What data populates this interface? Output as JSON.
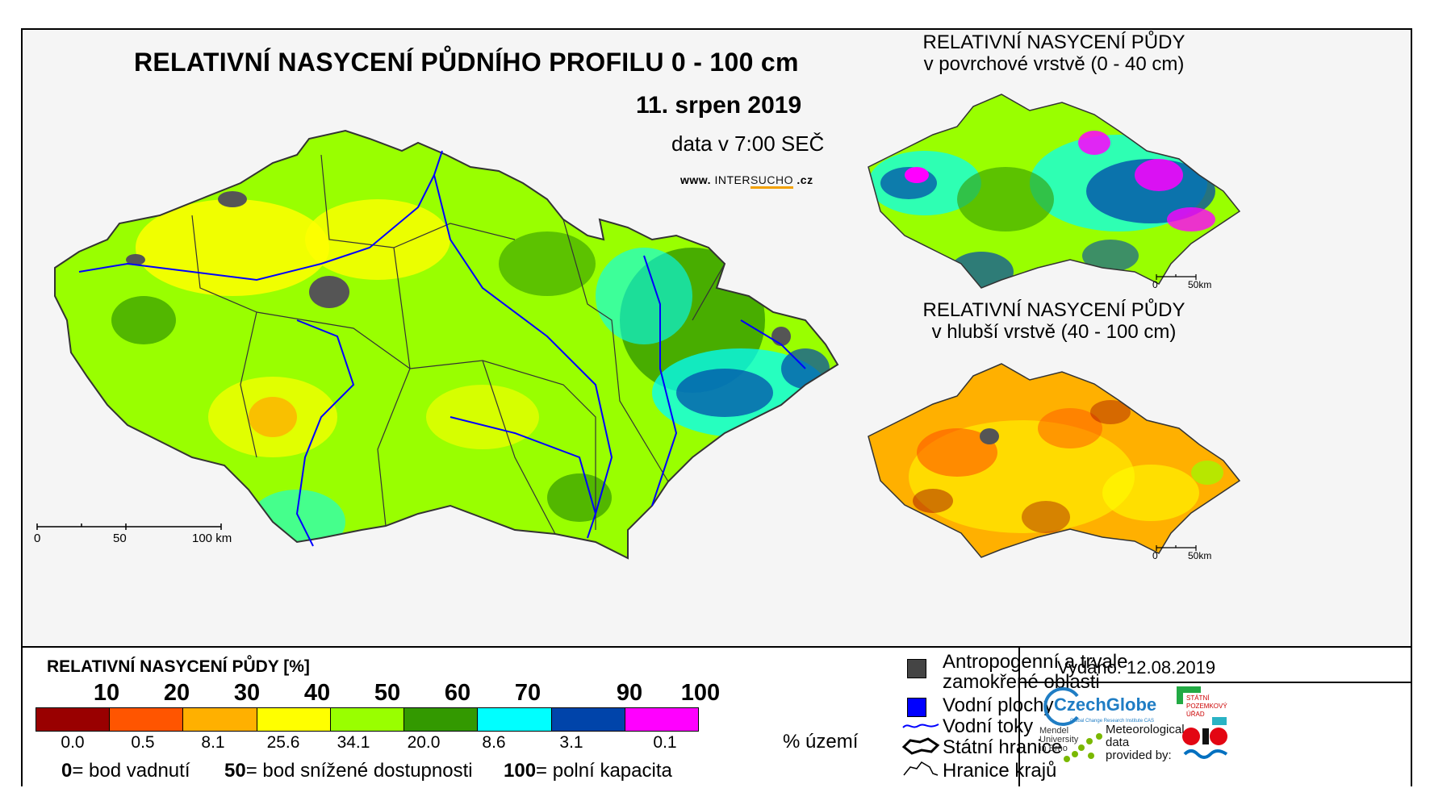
{
  "title": "RELATIVNÍ NASYCENÍ PŮDNÍHO PROFILU 0 - 100 cm",
  "date": "11. srpen 2019",
  "time": "data v 7:00 SEČ",
  "website": {
    "pre": "www.",
    "brand_a": "INTER",
    "brand_b": "SUCHO",
    "post": ".cz"
  },
  "main_scale": {
    "labels": [
      "0",
      "50",
      "100 km"
    ]
  },
  "inset_top": {
    "title_line1": "RELATIVNÍ NASYCENÍ PŮDY",
    "title_line2": "v povrchové vrstvě (0 - 40 cm)",
    "scale_labels": [
      "0",
      "50km"
    ]
  },
  "inset_bottom": {
    "title_line1": "RELATIVNÍ NASYCENÍ PŮDY",
    "title_line2": "v hlubší vrstvě (40 - 100 cm)",
    "scale_labels": [
      "0",
      "50km"
    ]
  },
  "legend": {
    "title": "RELATIVNÍ NASYCENÍ PŮDY [%]",
    "thresholds": [
      "10",
      "20",
      "30",
      "40",
      "50",
      "60",
      "70",
      "90",
      "100"
    ],
    "colors": [
      "#990000",
      "#ff5500",
      "#ffb000",
      "#ffff00",
      "#99ff00",
      "#339900",
      "#00ffff",
      "#0044aa",
      "#ff00ff"
    ],
    "percent_area": [
      "0.0",
      "0.5",
      "8.1",
      "25.6",
      "34.1",
      "20.0",
      "8.6",
      "3.1",
      "0.1"
    ],
    "percent_unit": "% území",
    "notes": [
      {
        "value": "0",
        "text": "= bod vadnutí"
      },
      {
        "value": "50",
        "text": "= bod snížené dostupnosti"
      },
      {
        "value": "100",
        "text": "= polní kapacita"
      }
    ]
  },
  "symbols": [
    {
      "icon": "gray-square-icon",
      "line1": "Antropogenní a trvale",
      "line2": "zamokřené oblasti"
    },
    {
      "icon": "blue-square-icon",
      "line1": "Vodní plochy"
    },
    {
      "icon": "river-line-icon",
      "line1": "Vodní toky"
    },
    {
      "icon": "border-outline-icon",
      "line1": "Státní hranice"
    },
    {
      "icon": "region-outline-icon",
      "line1": "Hranice krajů"
    }
  ],
  "issued": "Vydáno: 12.08.2019",
  "logos": {
    "czechglobe": "CzechGlobe",
    "czechglobe_sub": "Global Change Research Institute CAS",
    "spu": [
      "STÁTNÍ",
      "POZEMKOVÝ",
      "ÚŘAD"
    ],
    "mendel": [
      "Mendel",
      "University",
      "in Brno"
    ],
    "meteo": [
      "Meteorological",
      "data",
      "provided by:"
    ]
  },
  "map_palette": {
    "green": "#99ff00",
    "yellow": "#ffff00",
    "orange": "#ffb000",
    "dark_green": "#339900",
    "cyan": "#00ffff",
    "blue": "#0044aa",
    "magenta": "#ff00ff",
    "red": "#990000",
    "river": "#0000ff"
  }
}
